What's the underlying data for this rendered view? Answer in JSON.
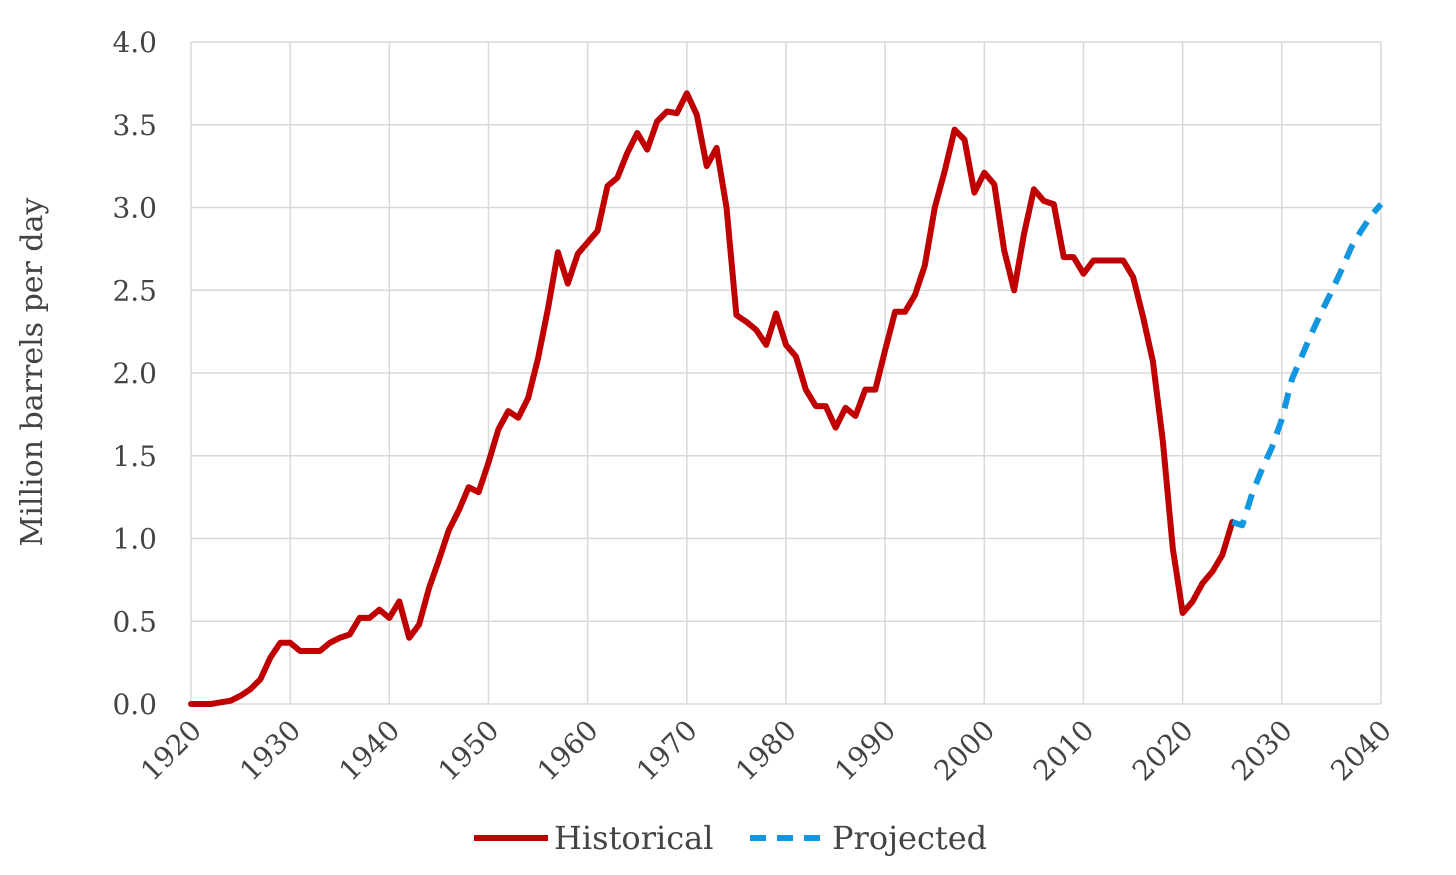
{
  "chart_data": {
    "type": "line",
    "title": "",
    "xlabel": "",
    "ylabel": "Million barrels per day",
    "xlim": [
      1920,
      2040
    ],
    "ylim": [
      0,
      4
    ],
    "x_ticks": [
      "1920",
      "1930",
      "1940",
      "1950",
      "1960",
      "1970",
      "1980",
      "1990",
      "2000",
      "2010",
      "2020",
      "2030",
      "2040"
    ],
    "y_ticks": [
      "0.0",
      "0.5",
      "1.0",
      "1.5",
      "2.0",
      "2.5",
      "3.0",
      "3.5",
      "4.0"
    ],
    "grid": true,
    "legend_position": "bottom",
    "series": [
      {
        "name": "Historical",
        "color": "#C00000",
        "style": "solid",
        "x": [
          1920,
          1921,
          1922,
          1923,
          1924,
          1925,
          1926,
          1927,
          1928,
          1929,
          1930,
          1931,
          1932,
          1933,
          1934,
          1935,
          1936,
          1937,
          1938,
          1939,
          1940,
          1941,
          1942,
          1943,
          1944,
          1945,
          1946,
          1947,
          1948,
          1949,
          1950,
          1951,
          1952,
          1953,
          1954,
          1955,
          1956,
          1957,
          1958,
          1959,
          1960,
          1961,
          1962,
          1963,
          1964,
          1965,
          1966,
          1967,
          1968,
          1969,
          1970,
          1971,
          1972,
          1973,
          1974,
          1975,
          1976,
          1977,
          1978,
          1979,
          1980,
          1981,
          1982,
          1983,
          1984,
          1985,
          1986,
          1987,
          1988,
          1989,
          1990,
          1991,
          1992,
          1993,
          1994,
          1995,
          1996,
          1997,
          1998,
          1999,
          2000,
          2001,
          2002,
          2003,
          2004,
          2005,
          2006,
          2007,
          2008,
          2009,
          2010,
          2011,
          2012,
          2013,
          2014,
          2015,
          2016,
          2017,
          2018,
          2019,
          2020,
          2021,
          2022,
          2023,
          2024,
          2025
        ],
        "values": [
          0.0,
          0.0,
          0.0,
          0.01,
          0.02,
          0.05,
          0.09,
          0.15,
          0.28,
          0.37,
          0.37,
          0.32,
          0.32,
          0.32,
          0.37,
          0.4,
          0.42,
          0.52,
          0.52,
          0.57,
          0.52,
          0.62,
          0.4,
          0.48,
          0.7,
          0.87,
          1.05,
          1.17,
          1.31,
          1.28,
          1.46,
          1.66,
          1.77,
          1.73,
          1.85,
          2.09,
          2.39,
          2.73,
          2.54,
          2.72,
          2.79,
          2.86,
          3.13,
          3.18,
          3.33,
          3.45,
          3.35,
          3.52,
          3.58,
          3.57,
          3.69,
          3.56,
          3.25,
          3.36,
          3.0,
          2.35,
          2.31,
          2.26,
          2.17,
          2.36,
          2.17,
          2.1,
          1.9,
          1.8,
          1.8,
          1.67,
          1.79,
          1.74,
          1.9,
          1.9,
          2.14,
          2.37,
          2.37,
          2.47,
          2.65,
          3.0,
          3.22,
          3.47,
          3.41,
          3.09,
          3.21,
          3.14,
          2.74,
          2.5,
          2.84,
          3.11,
          3.04,
          3.02,
          2.7,
          2.7,
          2.6,
          2.68,
          2.68,
          2.68,
          2.68,
          2.58,
          2.34,
          2.07,
          1.59,
          0.94,
          0.55,
          0.62,
          0.73,
          0.8,
          0.9,
          1.1
        ]
      },
      {
        "name": "Projected",
        "color": "#1396E0",
        "style": "dashed",
        "x": [
          2025,
          2026,
          2027,
          2028,
          2029,
          2030,
          2031,
          2032,
          2033,
          2034,
          2035,
          2036,
          2037,
          2038,
          2039,
          2040
        ],
        "values": [
          1.1,
          1.08,
          1.27,
          1.42,
          1.55,
          1.72,
          1.96,
          2.1,
          2.24,
          2.37,
          2.49,
          2.62,
          2.76,
          2.86,
          2.95,
          3.02
        ]
      }
    ]
  }
}
